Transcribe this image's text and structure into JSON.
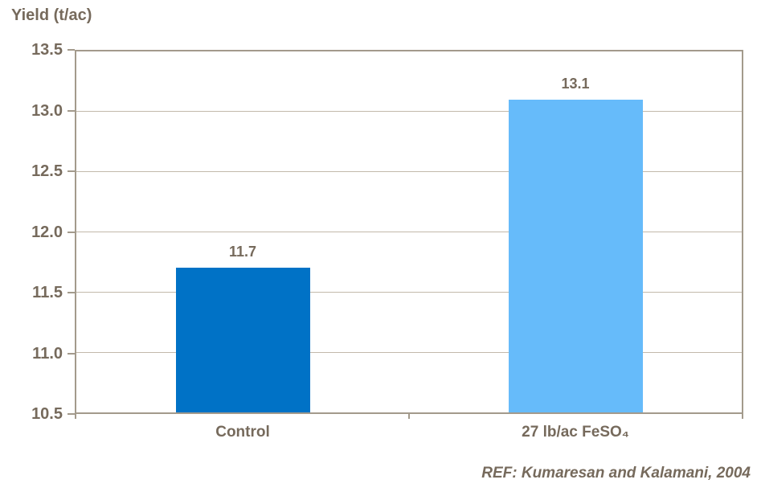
{
  "chart_data": {
    "type": "bar",
    "title": "Yield (t/ac)",
    "categories": [
      "Control",
      "27 lb/ac FeSO₄"
    ],
    "values": [
      11.7,
      13.1
    ],
    "bar_labels": [
      "11.7",
      "13.1"
    ],
    "series_names": [
      "control-bar",
      "feso4-bar"
    ],
    "bar_colors": [
      "#0072C6",
      "#66BBFA"
    ],
    "xlabel": "",
    "ylabel": "Yield (t/ac)",
    "ylim": [
      10.5,
      13.5
    ],
    "ytick_step": 0.5,
    "ytick_labels": [
      "13.5",
      "13.0",
      "12.5",
      "12.0",
      "11.5",
      "11.0",
      "10.5"
    ],
    "grid": true,
    "legend": "none",
    "annotation": "REF: Kumaresan and Kalamani, 2004"
  },
  "colors": {
    "text": "#766A5C",
    "axis": "#A39A8C",
    "grid": "#C2B9AB",
    "background": "#FFFFFF"
  }
}
